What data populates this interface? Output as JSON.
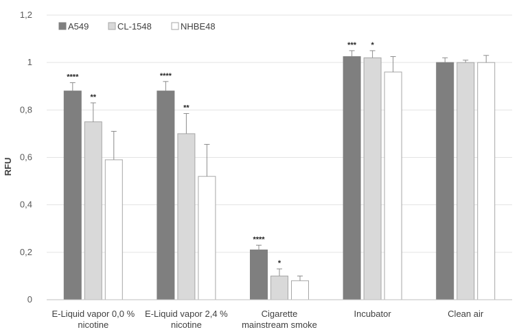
{
  "chart_data": {
    "type": "bar",
    "title": "",
    "xlabel": "",
    "ylabel": "RFU",
    "ylim": [
      0,
      1.2
    ],
    "yticks": [
      "0",
      "0,2",
      "0,4",
      "0,6",
      "0,8",
      "1",
      "1,2"
    ],
    "grid": true,
    "legend_position": "top-left",
    "categories": [
      [
        "E-Liquid vapor 0,0 %",
        "nicotine"
      ],
      [
        "E-Liquid vapor 2,4 %",
        "nicotine"
      ],
      [
        "Cigarette",
        "mainstream smoke"
      ],
      [
        "Incubator"
      ],
      [
        "Clean air"
      ]
    ],
    "series": [
      {
        "name": "A549",
        "color": "#7f7f7f",
        "values": [
          0.88,
          0.88,
          0.21,
          1.025,
          1.0
        ],
        "errors": [
          0.035,
          0.04,
          0.02,
          0.025,
          0.02
        ],
        "significance": [
          "****",
          "****",
          "****",
          "***",
          ""
        ]
      },
      {
        "name": "CL-1548",
        "color": "#d9d9d9",
        "values": [
          0.75,
          0.7,
          0.1,
          1.02,
          1.0
        ],
        "errors": [
          0.08,
          0.085,
          0.03,
          0.03,
          0.01
        ],
        "significance": [
          "**",
          "**",
          "*",
          "*",
          ""
        ]
      },
      {
        "name": "NHBE48",
        "color": "#ffffff",
        "values": [
          0.59,
          0.52,
          0.08,
          0.96,
          1.0
        ],
        "errors": [
          0.12,
          0.135,
          0.02,
          0.065,
          0.03
        ],
        "significance": [
          "",
          "",
          "",
          "",
          ""
        ]
      }
    ]
  }
}
